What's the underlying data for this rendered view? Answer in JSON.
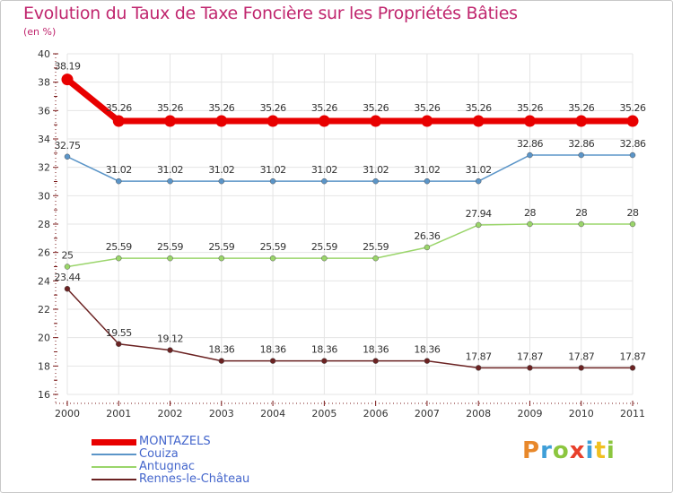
{
  "header": {
    "title": "Evolution du Taux de Taxe Foncière sur les Propriétés Bâties",
    "unit": "(en %)"
  },
  "logo": {
    "text": "Proxiti",
    "letters": [
      {
        "ch": "P",
        "color": "#e8882b"
      },
      {
        "ch": "r",
        "color": "#3f9fd8"
      },
      {
        "ch": "o",
        "color": "#8cc63f"
      },
      {
        "ch": "x",
        "color": "#e8402b"
      },
      {
        "ch": "i",
        "color": "#3f9fd8"
      },
      {
        "ch": "t",
        "color": "#f0c020"
      },
      {
        "ch": "i",
        "color": "#8cc63f"
      }
    ]
  },
  "chart_data": {
    "type": "line",
    "title": "Evolution du Taux de Taxe Foncière sur les Propriétés Bâties",
    "ylabel": "(en %)",
    "xlabel": "",
    "categories": [
      "2000",
      "2001",
      "2002",
      "2003",
      "2004",
      "2005",
      "2006",
      "2007",
      "2008",
      "2009",
      "2010",
      "2011"
    ],
    "ylim": [
      16,
      40
    ],
    "yticks": [
      16,
      18,
      20,
      22,
      24,
      26,
      28,
      30,
      32,
      34,
      36,
      38,
      40
    ],
    "grid": true,
    "series": [
      {
        "name": "MONTAZELS",
        "color": "#e80000",
        "thick": true,
        "values": [
          38.19,
          35.26,
          35.26,
          35.26,
          35.26,
          35.26,
          35.26,
          35.26,
          35.26,
          35.26,
          35.26,
          35.26
        ],
        "labels": [
          "38.19",
          "35.26",
          "35.26",
          "35.26",
          "35.26",
          "35.26",
          "35.26",
          "35.26",
          "35.26",
          "35.26",
          "35.26",
          "35.26"
        ]
      },
      {
        "name": "Couiza",
        "color": "#5b95c8",
        "thick": false,
        "values": [
          32.75,
          31.02,
          31.02,
          31.02,
          31.02,
          31.02,
          31.02,
          31.02,
          31.02,
          32.86,
          32.86,
          32.86
        ],
        "labels": [
          "32.75",
          "31.02",
          "31.02",
          "31.02",
          "31.02",
          "31.02",
          "31.02",
          "31.02",
          "31.02",
          "32.86",
          "32.86",
          "32.86"
        ]
      },
      {
        "name": "Antugnac",
        "color": "#9ad56a",
        "thick": false,
        "values": [
          25,
          25.59,
          25.59,
          25.59,
          25.59,
          25.59,
          25.59,
          26.36,
          27.94,
          28,
          28,
          28
        ],
        "labels": [
          "25",
          "25.59",
          "25.59",
          "25.59",
          "25.59",
          "25.59",
          "25.59",
          "26.36",
          "27.94",
          "28",
          "28",
          "28"
        ]
      },
      {
        "name": "Rennes-le-Château",
        "color": "#6b2222",
        "thick": false,
        "values": [
          23.44,
          19.55,
          19.12,
          18.36,
          18.36,
          18.36,
          18.36,
          18.36,
          17.87,
          17.87,
          17.87,
          17.87
        ],
        "labels": [
          "23.44",
          "19.55",
          "19.12",
          "18.36",
          "18.36",
          "18.36",
          "18.36",
          "18.36",
          "17.87",
          "17.87",
          "17.87",
          "17.87"
        ]
      }
    ]
  }
}
